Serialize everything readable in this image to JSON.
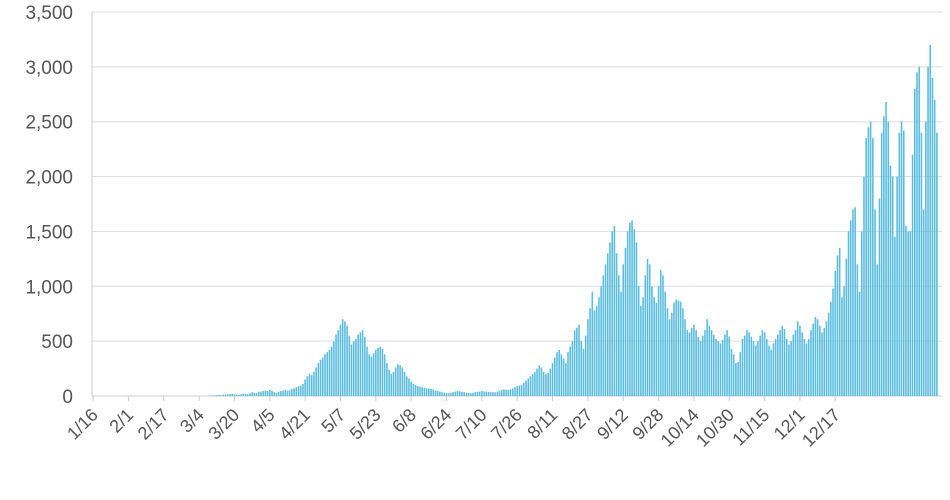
{
  "chart_data": {
    "type": "bar",
    "title": "",
    "xlabel": "",
    "ylabel": "",
    "ylim": [
      0,
      3500
    ],
    "grid": true,
    "legend": "none",
    "colors": {
      "bar": "#5bbde0",
      "bar_stroke": "#3aa6d0",
      "grid": "#dddddd",
      "axis": "#cccccc",
      "text": "#555555"
    },
    "yticks": [
      "0",
      "500",
      "1,000",
      "1,500",
      "2,000",
      "2,500",
      "3,000",
      "3,500"
    ],
    "xticks": [
      "1/16",
      "2/1",
      "2/17",
      "3/4",
      "3/20",
      "4/5",
      "4/21",
      "5/7",
      "5/23",
      "6/8",
      "6/24",
      "7/10",
      "7/26",
      "8/11",
      "8/27",
      "9/12",
      "9/28",
      "10/14",
      "10/30",
      "11/15",
      "12/1",
      "12/17"
    ],
    "daily_values": [
      1,
      0,
      0,
      0,
      0,
      0,
      0,
      0,
      0,
      0,
      0,
      0,
      0,
      0,
      0,
      0,
      0,
      0,
      0,
      0,
      0,
      0,
      0,
      0,
      0,
      0,
      0,
      0,
      0,
      0,
      0,
      0,
      0,
      0,
      0,
      0,
      0,
      0,
      0,
      0,
      0,
      0,
      0,
      0,
      0,
      0,
      0,
      0,
      0,
      0,
      0,
      0,
      0,
      5,
      4,
      6,
      8,
      10,
      7,
      12,
      14,
      15,
      18,
      20,
      16,
      12,
      10,
      15,
      22,
      20,
      18,
      25,
      35,
      30,
      28,
      38,
      40,
      45,
      50,
      48,
      55,
      45,
      35,
      30,
      38,
      45,
      50,
      55,
      48,
      52,
      62,
      70,
      80,
      90,
      95,
      110,
      150,
      180,
      200,
      190,
      220,
      260,
      300,
      330,
      350,
      380,
      400,
      420,
      450,
      500,
      560,
      600,
      650,
      700,
      680,
      640,
      550,
      470,
      500,
      520,
      560,
      580,
      600,
      540,
      450,
      380,
      360,
      390,
      420,
      440,
      450,
      430,
      380,
      300,
      240,
      200,
      220,
      260,
      290,
      280,
      260,
      220,
      180,
      160,
      130,
      110,
      100,
      90,
      85,
      80,
      75,
      70,
      68,
      65,
      60,
      50,
      45,
      40,
      35,
      30,
      28,
      25,
      30,
      35,
      40,
      45,
      42,
      38,
      35,
      30,
      28,
      25,
      30,
      35,
      38,
      40,
      45,
      42,
      40,
      38,
      36,
      35,
      34,
      38,
      45,
      55,
      60,
      58,
      55,
      60,
      70,
      80,
      90,
      95,
      100,
      120,
      140,
      160,
      180,
      200,
      220,
      250,
      280,
      260,
      220,
      200,
      210,
      250,
      300,
      350,
      400,
      420,
      380,
      340,
      300,
      400,
      450,
      500,
      600,
      620,
      650,
      500,
      430,
      550,
      700,
      800,
      950,
      780,
      820,
      900,
      1000,
      1100,
      1200,
      1300,
      1400,
      1500,
      1550,
      1300,
      1100,
      950,
      1200,
      1350,
      1500,
      1580,
      1600,
      1520,
      1400,
      1000,
      820,
      900,
      1100,
      1250,
      1200,
      1000,
      900,
      850,
      1000,
      1150,
      1100,
      950,
      800,
      700,
      760,
      850,
      880,
      870,
      860,
      800,
      700,
      600,
      580,
      620,
      650,
      600,
      540,
      500,
      550,
      600,
      700,
      640,
      600,
      560,
      520,
      500,
      480,
      510,
      560,
      600,
      540,
      430,
      380,
      300,
      310,
      400,
      520,
      550,
      600,
      580,
      540,
      500,
      460,
      500,
      550,
      600,
      580,
      520,
      460,
      420,
      480,
      520,
      560,
      600,
      640,
      610,
      520,
      470,
      500,
      560,
      600,
      680,
      640,
      580,
      520,
      480,
      520,
      600,
      660,
      720,
      700,
      640,
      580,
      620,
      680,
      760,
      860,
      980,
      1140,
      1280,
      1350,
      900,
      1000,
      1250,
      1500,
      1600,
      1700,
      1720,
      1200,
      950,
      1500,
      2000,
      2350,
      2450,
      2500,
      2350,
      1700,
      1200,
      1800,
      2400,
      2550,
      2680,
      2500,
      2100,
      2000,
      1450,
      2000,
      2400,
      2500,
      2420,
      1550,
      1500,
      1500,
      2200,
      2800,
      2950,
      3000,
      2400,
      1700,
      2500,
      3000,
      3200,
      2900,
      2700,
      2400
    ]
  }
}
